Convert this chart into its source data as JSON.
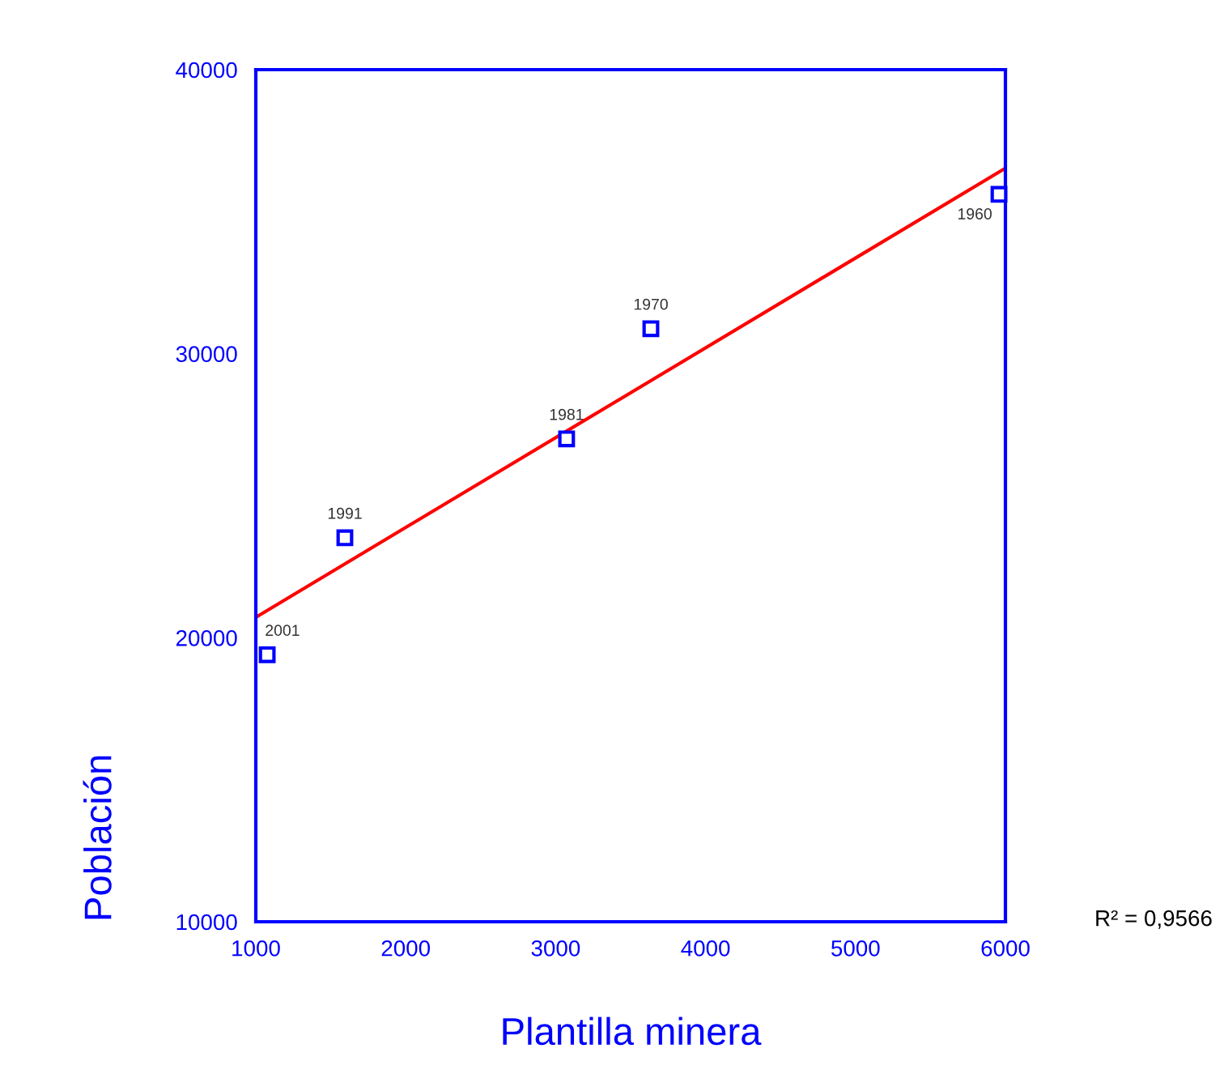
{
  "chart_data": {
    "type": "scatter",
    "xlabel": "Plantilla minera",
    "ylabel": "Población",
    "xlim": [
      1000,
      6000
    ],
    "xticks": [
      1000,
      2000,
      3000,
      4000,
      5000,
      6000
    ],
    "ylim": [
      10000,
      40000
    ],
    "yticks": [
      10000,
      20000,
      30000,
      40000
    ],
    "grid": false,
    "series": [
      {
        "marker": "square",
        "color": "#0000ff",
        "x": [
          1076,
          1594,
          3073,
          3635,
          5957
        ],
        "values": [
          19400,
          23520,
          27000,
          30880,
          35610
        ]
      },
      {
        "type": "line",
        "color": "#ff0000",
        "x": [
          1000,
          6000
        ],
        "values": [
          20720,
          36530
        ]
      }
    ],
    "annotations": [
      {
        "text": "2001",
        "x": 1076,
        "y": 19400
      },
      {
        "text": "1991",
        "x": 1594,
        "y": 23520
      },
      {
        "text": "1981",
        "x": 3073,
        "y": 27000
      },
      {
        "text": "1970",
        "x": 3635,
        "y": 30880
      },
      {
        "text": "1960",
        "x": 5957,
        "y": 35610
      },
      "R² = 0,9566"
    ]
  }
}
